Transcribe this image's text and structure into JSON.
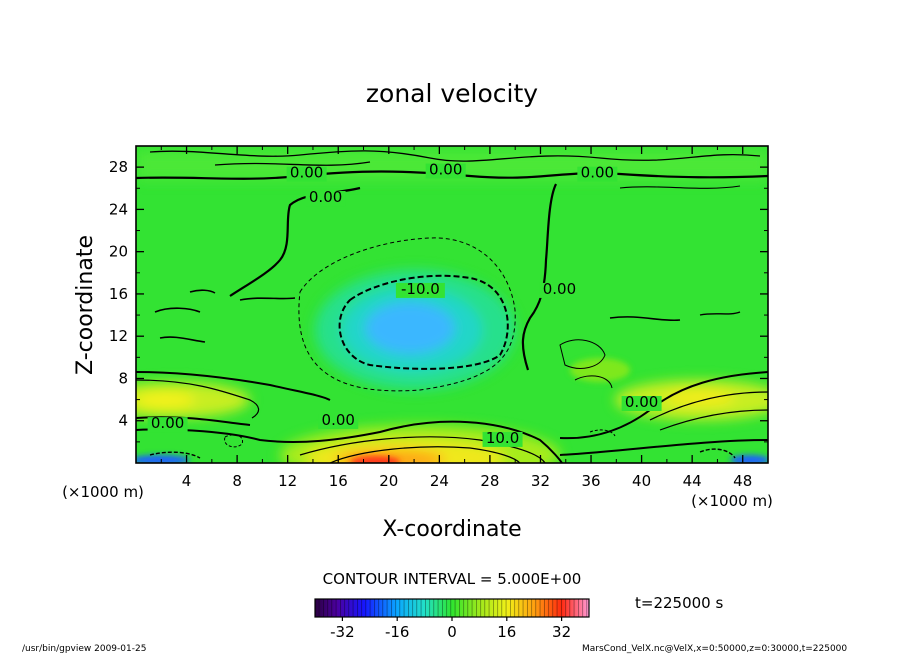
{
  "chart_data": {
    "type": "heatmap",
    "title": "zonal velocity",
    "xlabel": "X-coordinate",
    "ylabel": "Z-coordinate",
    "x_unit": "(×1000 m)",
    "z_unit": "(×1000 m)",
    "xlim": [
      0,
      50
    ],
    "ylim": [
      0,
      30
    ],
    "xticks": [
      4,
      8,
      12,
      16,
      20,
      24,
      28,
      32,
      36,
      40,
      44,
      48
    ],
    "yticks": [
      4,
      8,
      12,
      16,
      20,
      24,
      28
    ],
    "contour_labels": [
      {
        "text": "0.00",
        "x": 13.5,
        "z": 27.0
      },
      {
        "text": "0.00",
        "x": 24.5,
        "z": 27.3
      },
      {
        "text": "0.00",
        "x": 36.5,
        "z": 27.0
      },
      {
        "text": "0.00",
        "x": 15.0,
        "z": 24.7
      },
      {
        "text": "-10.0",
        "x": 22.5,
        "z": 16.0
      },
      {
        "text": "0.00",
        "x": 33.5,
        "z": 16.0
      },
      {
        "text": "0.00",
        "x": 2.5,
        "z": 3.3
      },
      {
        "text": "0.00",
        "x": 16.0,
        "z": 3.6
      },
      {
        "text": "10.0",
        "x": 29.0,
        "z": 1.9
      },
      {
        "text": "0.00",
        "x": 40.0,
        "z": 5.3
      }
    ],
    "colorbar": {
      "title": "CONTOUR INTERVAL = 5.000E+00",
      "min": -40,
      "max": 40,
      "ticks": [
        "-32",
        "-16",
        "0",
        "16",
        "32"
      ]
    }
  },
  "annotations": {
    "time": "t=225000 s",
    "footer_left": "/usr/bin/gpview  2009-01-25",
    "footer_right": "MarsCond_VelX.nc@VelX,x=0:50000,z=0:30000,t=225000"
  },
  "colors": {
    "background_green": "#31e531",
    "negative_blue": "#3ab7ff",
    "positive_red": "#ff3b1e"
  }
}
